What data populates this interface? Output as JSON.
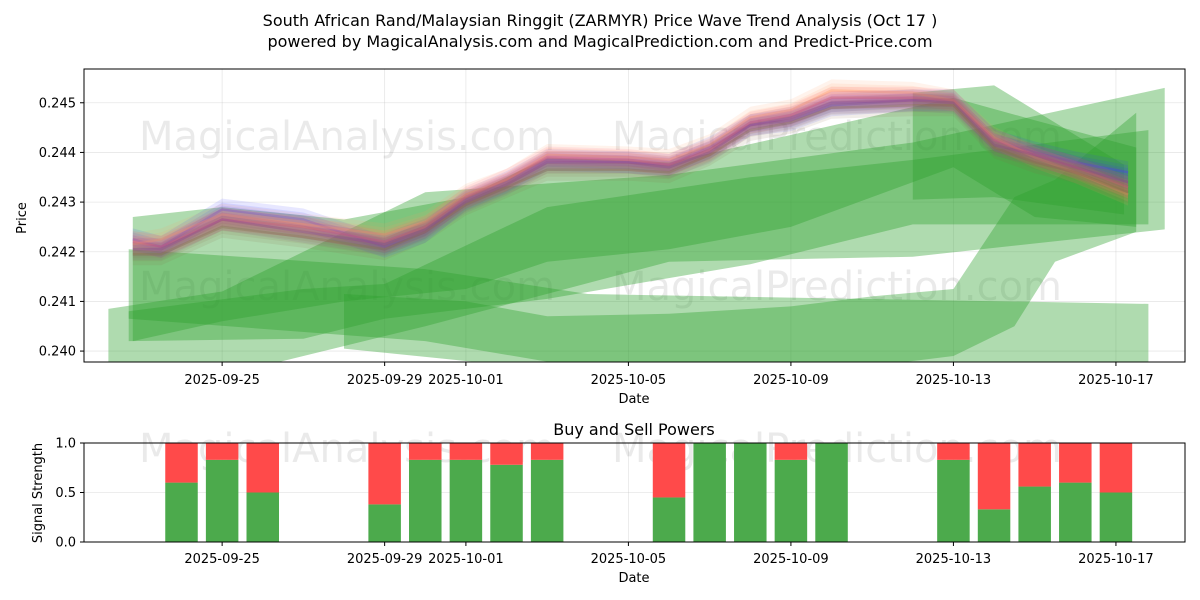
{
  "chart_data": [
    {
      "type": "area",
      "title": "South African Rand/Malaysian Ringgit (ZARMYR) Price Wave Trend Analysis (Oct 17 )",
      "subtitle": "powered by MagicalAnalysis.com and MagicalPrediction.com and Predict-Price.com",
      "xlabel": "Date",
      "ylabel": "Price",
      "xlim": [
        -8.4,
        18.7
      ],
      "ylim": [
        0.23978,
        0.24568
      ],
      "x_ticks": [
        {
          "x": -5,
          "label": "2025-09-25"
        },
        {
          "x": -1,
          "label": "2025-09-29"
        },
        {
          "x": 1,
          "label": "2025-10-01"
        },
        {
          "x": 5,
          "label": "2025-10-05"
        },
        {
          "x": 9,
          "label": "2025-10-09"
        },
        {
          "x": 13,
          "label": "2025-10-13"
        },
        {
          "x": 17,
          "label": "2025-10-17"
        }
      ],
      "y_ticks": [
        {
          "y": 0.24,
          "label": "0.240"
        },
        {
          "y": 0.241,
          "label": "0.241"
        },
        {
          "y": 0.242,
          "label": "0.242"
        },
        {
          "y": 0.243,
          "label": "0.243"
        },
        {
          "y": 0.244,
          "label": "0.244"
        },
        {
          "y": 0.245,
          "label": "0.245"
        }
      ],
      "grid": true,
      "watermarks": [
        "MagicalAnalysis.com",
        "MagicalPrediction.com",
        "MagicalAnalysis.com",
        "MagicalPrediction.com"
      ],
      "green_bands": [
        {
          "upper": [
            [
              -7.3,
              0.24205
            ],
            [
              0,
              0.24165
            ],
            [
              4,
              0.24115
            ],
            [
              17.8,
              0.24095
            ]
          ],
          "lower": [
            [
              17.8,
              0.23945
            ],
            [
              4,
              0.23965
            ],
            [
              0,
              0.2402
            ],
            [
              -7.3,
              0.24065
            ]
          ]
        },
        {
          "upper": [
            [
              -7.8,
              0.24085
            ],
            [
              -5,
              0.2412
            ],
            [
              0,
              0.2432
            ],
            [
              6,
              0.24355
            ],
            [
              12,
              0.2442
            ],
            [
              18.2,
              0.2453
            ]
          ],
          "lower": [
            [
              18.2,
              0.24245
            ],
            [
              12,
              0.2419
            ],
            [
              6,
              0.2418
            ],
            [
              0,
              0.2405
            ],
            [
              -5,
              0.2395
            ],
            [
              -7.8,
              0.23865
            ]
          ]
        },
        {
          "upper": [
            [
              -7.3,
              0.2408
            ],
            [
              -3,
              0.24125
            ],
            [
              -1,
              0.24135
            ],
            [
              3,
              0.2429
            ],
            [
              8,
              0.2435
            ],
            [
              12,
              0.24385
            ],
            [
              17.8,
              0.24445
            ]
          ],
          "lower": [
            [
              17.8,
              0.24255
            ],
            [
              12,
              0.24255
            ],
            [
              8,
              0.24175
            ],
            [
              3,
              0.24105
            ],
            [
              -1,
              0.24065
            ],
            [
              -3,
              0.24025
            ],
            [
              -7.3,
              0.2402
            ]
          ]
        },
        {
          "upper": [
            [
              -7.2,
              0.2427
            ],
            [
              -5,
              0.2429
            ],
            [
              -2,
              0.24265
            ],
            [
              1,
              0.2431
            ],
            [
              3,
              0.2439
            ],
            [
              6,
              0.2438
            ],
            [
              9,
              0.24435
            ],
            [
              13,
              0.2451
            ],
            [
              15,
              0.24465
            ],
            [
              17.5,
              0.2441
            ]
          ],
          "lower": [
            [
              17.5,
              0.2425
            ],
            [
              15,
              0.2427
            ],
            [
              13,
              0.2437
            ],
            [
              9,
              0.2425
            ],
            [
              6,
              0.24205
            ],
            [
              3,
              0.2418
            ],
            [
              1,
              0.24125
            ],
            [
              -2,
              0.241
            ],
            [
              -5,
              0.2406
            ],
            [
              -7.2,
              0.2402
            ]
          ]
        },
        {
          "upper": [
            [
              -2,
              0.24115
            ],
            [
              1,
              0.241
            ],
            [
              3,
              0.2407
            ],
            [
              6,
              0.24075
            ],
            [
              9,
              0.2409
            ],
            [
              11,
              0.2411
            ],
            [
              13,
              0.24125
            ],
            [
              14.5,
              0.2431
            ],
            [
              15.5,
              0.24345
            ],
            [
              17.5,
              0.2448
            ]
          ],
          "lower": [
            [
              17.5,
              0.2424
            ],
            [
              15.5,
              0.2418
            ],
            [
              14.5,
              0.2405
            ],
            [
              13,
              0.2399
            ],
            [
              11,
              0.2397
            ],
            [
              9,
              0.2396
            ],
            [
              6,
              0.2396
            ],
            [
              3,
              0.23965
            ],
            [
              1,
              0.2398
            ],
            [
              -2,
              0.24005
            ]
          ]
        },
        {
          "upper": [
            [
              12,
              0.2452
            ],
            [
              14,
              0.24535
            ],
            [
              17.2,
              0.24375
            ]
          ],
          "lower": [
            [
              17.2,
              0.24275
            ],
            [
              14,
              0.2431
            ],
            [
              12,
              0.24305
            ]
          ]
        }
      ],
      "price_waves": [
        {
          "color": "#3b3bff",
          "values": [
            [
              -7.2,
              0.24225
            ],
            [
              -6.5,
              0.2421
            ],
            [
              -5,
              0.24285
            ],
            [
              -3,
              0.24265
            ],
            [
              -1,
              0.2421
            ],
            [
              0,
              0.2424
            ],
            [
              1,
              0.24305
            ],
            [
              2,
              0.2434
            ],
            [
              3,
              0.24385
            ],
            [
              5,
              0.2438
            ],
            [
              6,
              0.24375
            ],
            [
              7,
              0.2441
            ],
            [
              8,
              0.24455
            ],
            [
              9,
              0.24465
            ],
            [
              10,
              0.24495
            ],
            [
              12,
              0.24505
            ],
            [
              13,
              0.24505
            ],
            [
              14,
              0.24425
            ],
            [
              15,
              0.244
            ],
            [
              16,
              0.2438
            ],
            [
              17.3,
              0.2436
            ]
          ]
        },
        {
          "color": "#ff4f7a",
          "values": [
            [
              -7.2,
              0.2422
            ],
            [
              -6.5,
              0.2421
            ],
            [
              -5,
              0.24265
            ],
            [
              -3,
              0.2425
            ],
            [
              -1,
              0.2422
            ],
            [
              0,
              0.2425
            ],
            [
              1,
              0.2431
            ],
            [
              2,
              0.24345
            ],
            [
              3,
              0.2439
            ],
            [
              5,
              0.24385
            ],
            [
              6,
              0.24375
            ],
            [
              7,
              0.24405
            ],
            [
              8,
              0.2446
            ],
            [
              9,
              0.24475
            ],
            [
              10,
              0.2451
            ],
            [
              12,
              0.2451
            ],
            [
              13,
              0.24505
            ],
            [
              14,
              0.24425
            ],
            [
              15,
              0.24395
            ],
            [
              16,
              0.2437
            ],
            [
              17.3,
              0.2433
            ]
          ]
        },
        {
          "color": "#ff9a66",
          "values": [
            [
              -7.2,
              0.24215
            ],
            [
              -6.5,
              0.24225
            ],
            [
              -5,
              0.24275
            ],
            [
              -3,
              0.24255
            ],
            [
              -1,
              0.24235
            ],
            [
              0,
              0.2426
            ],
            [
              1,
              0.24315
            ],
            [
              2,
              0.24345
            ],
            [
              3,
              0.24395
            ],
            [
              5,
              0.2439
            ],
            [
              6,
              0.24385
            ],
            [
              7,
              0.24415
            ],
            [
              8,
              0.2447
            ],
            [
              9,
              0.24485
            ],
            [
              10,
              0.24525
            ],
            [
              12,
              0.2452
            ],
            [
              13,
              0.24505
            ],
            [
              14,
              0.2443
            ],
            [
              15,
              0.2439
            ],
            [
              16,
              0.2436
            ],
            [
              17.3,
              0.24315
            ]
          ]
        },
        {
          "color": "#8a3fa0",
          "values": [
            [
              -7.2,
              0.24205
            ],
            [
              -6.5,
              0.24205
            ],
            [
              -5,
              0.24265
            ],
            [
              -3,
              0.2424
            ],
            [
              -1,
              0.24215
            ],
            [
              0,
              0.24245
            ],
            [
              1,
              0.243
            ],
            [
              2,
              0.24335
            ],
            [
              3,
              0.2438
            ],
            [
              5,
              0.2438
            ],
            [
              6,
              0.2437
            ],
            [
              7,
              0.244
            ],
            [
              8,
              0.24455
            ],
            [
              9,
              0.2447
            ],
            [
              10,
              0.245
            ],
            [
              12,
              0.24505
            ],
            [
              13,
              0.245
            ],
            [
              14,
              0.24415
            ],
            [
              15,
              0.24395
            ],
            [
              16,
              0.2437
            ],
            [
              17.3,
              0.2434
            ]
          ]
        },
        {
          "color": "#8a6a4a",
          "values": [
            [
              -7.2,
              0.24195
            ],
            [
              -6.5,
              0.24195
            ],
            [
              -5,
              0.2425
            ],
            [
              -3,
              0.2423
            ],
            [
              -1,
              0.24205
            ],
            [
              0,
              0.2424
            ],
            [
              1,
              0.24295
            ],
            [
              2,
              0.2433
            ],
            [
              3,
              0.24365
            ],
            [
              5,
              0.24365
            ],
            [
              6,
              0.2436
            ],
            [
              7,
              0.24395
            ],
            [
              8,
              0.24445
            ],
            [
              9,
              0.2446
            ],
            [
              10,
              0.2449
            ],
            [
              12,
              0.24495
            ],
            [
              13,
              0.24495
            ],
            [
              14,
              0.2441
            ],
            [
              15,
              0.2438
            ],
            [
              16,
              0.2436
            ],
            [
              17.3,
              0.2432
            ]
          ]
        }
      ]
    },
    {
      "type": "bar",
      "title": "Buy and Sell Powers",
      "xlabel": "Date",
      "ylabel": "Signal Strength",
      "xlim": [
        -8.4,
        18.7
      ],
      "ylim": [
        0.0,
        1.0
      ],
      "x_ticks": [
        {
          "x": -5,
          "label": "2025-09-25"
        },
        {
          "x": -1,
          "label": "2025-09-29"
        },
        {
          "x": 1,
          "label": "2025-10-01"
        },
        {
          "x": 5,
          "label": "2025-10-05"
        },
        {
          "x": 9,
          "label": "2025-10-09"
        },
        {
          "x": 13,
          "label": "2025-10-13"
        },
        {
          "x": 17,
          "label": "2025-10-17"
        }
      ],
      "y_ticks": [
        {
          "y": 0.0,
          "label": "0.0"
        },
        {
          "y": 0.5,
          "label": "0.5"
        },
        {
          "y": 1.0,
          "label": "1.0"
        }
      ],
      "grid": true,
      "watermarks": [
        "MagicalAnalysis.com",
        "MagicalPrediction.com"
      ],
      "categories": [
        "2025-09-24",
        "2025-09-25",
        "2025-09-26",
        "2025-09-29",
        "2025-09-30",
        "2025-10-01",
        "2025-10-02",
        "2025-10-03",
        "2025-10-06",
        "2025-10-07",
        "2025-10-08",
        "2025-10-09",
        "2025-10-10",
        "2025-10-13",
        "2025-10-14",
        "2025-10-15",
        "2025-10-16",
        "2025-10-17"
      ],
      "x": [
        -6,
        -5,
        -4,
        -1,
        0,
        1,
        2,
        3,
        6,
        7,
        8,
        9,
        10,
        13,
        14,
        15,
        16,
        17
      ],
      "series": [
        {
          "name": "Buy",
          "color": "#4caa4c",
          "values": [
            0.6,
            0.83,
            0.5,
            0.38,
            0.83,
            0.83,
            0.78,
            0.83,
            0.45,
            1.0,
            1.0,
            0.83,
            1.0,
            0.83,
            0.33,
            0.56,
            0.6,
            0.5
          ]
        },
        {
          "name": "Sell",
          "color": "#ff4a4a",
          "values": [
            0.4,
            0.17,
            0.5,
            0.62,
            0.17,
            0.17,
            0.22,
            0.17,
            0.55,
            0.0,
            0.0,
            0.17,
            0.0,
            0.17,
            0.67,
            0.44,
            0.4,
            0.5
          ]
        }
      ]
    }
  ]
}
